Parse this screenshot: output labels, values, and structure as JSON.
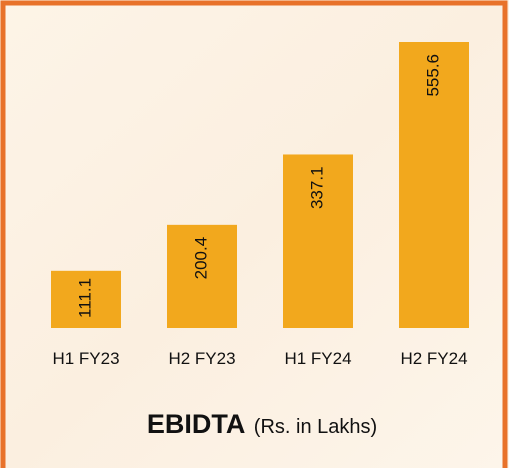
{
  "chart_data": {
    "type": "bar",
    "title": "EBIDTA",
    "subtitle": "(Rs. in Lakhs)",
    "categories": [
      "H1 FY23",
      "H2 FY23",
      "H1 FY24",
      "H2 FY24"
    ],
    "values": [
      111.1,
      200.4,
      337.1,
      555.6
    ],
    "color": "#f2a81d"
  }
}
